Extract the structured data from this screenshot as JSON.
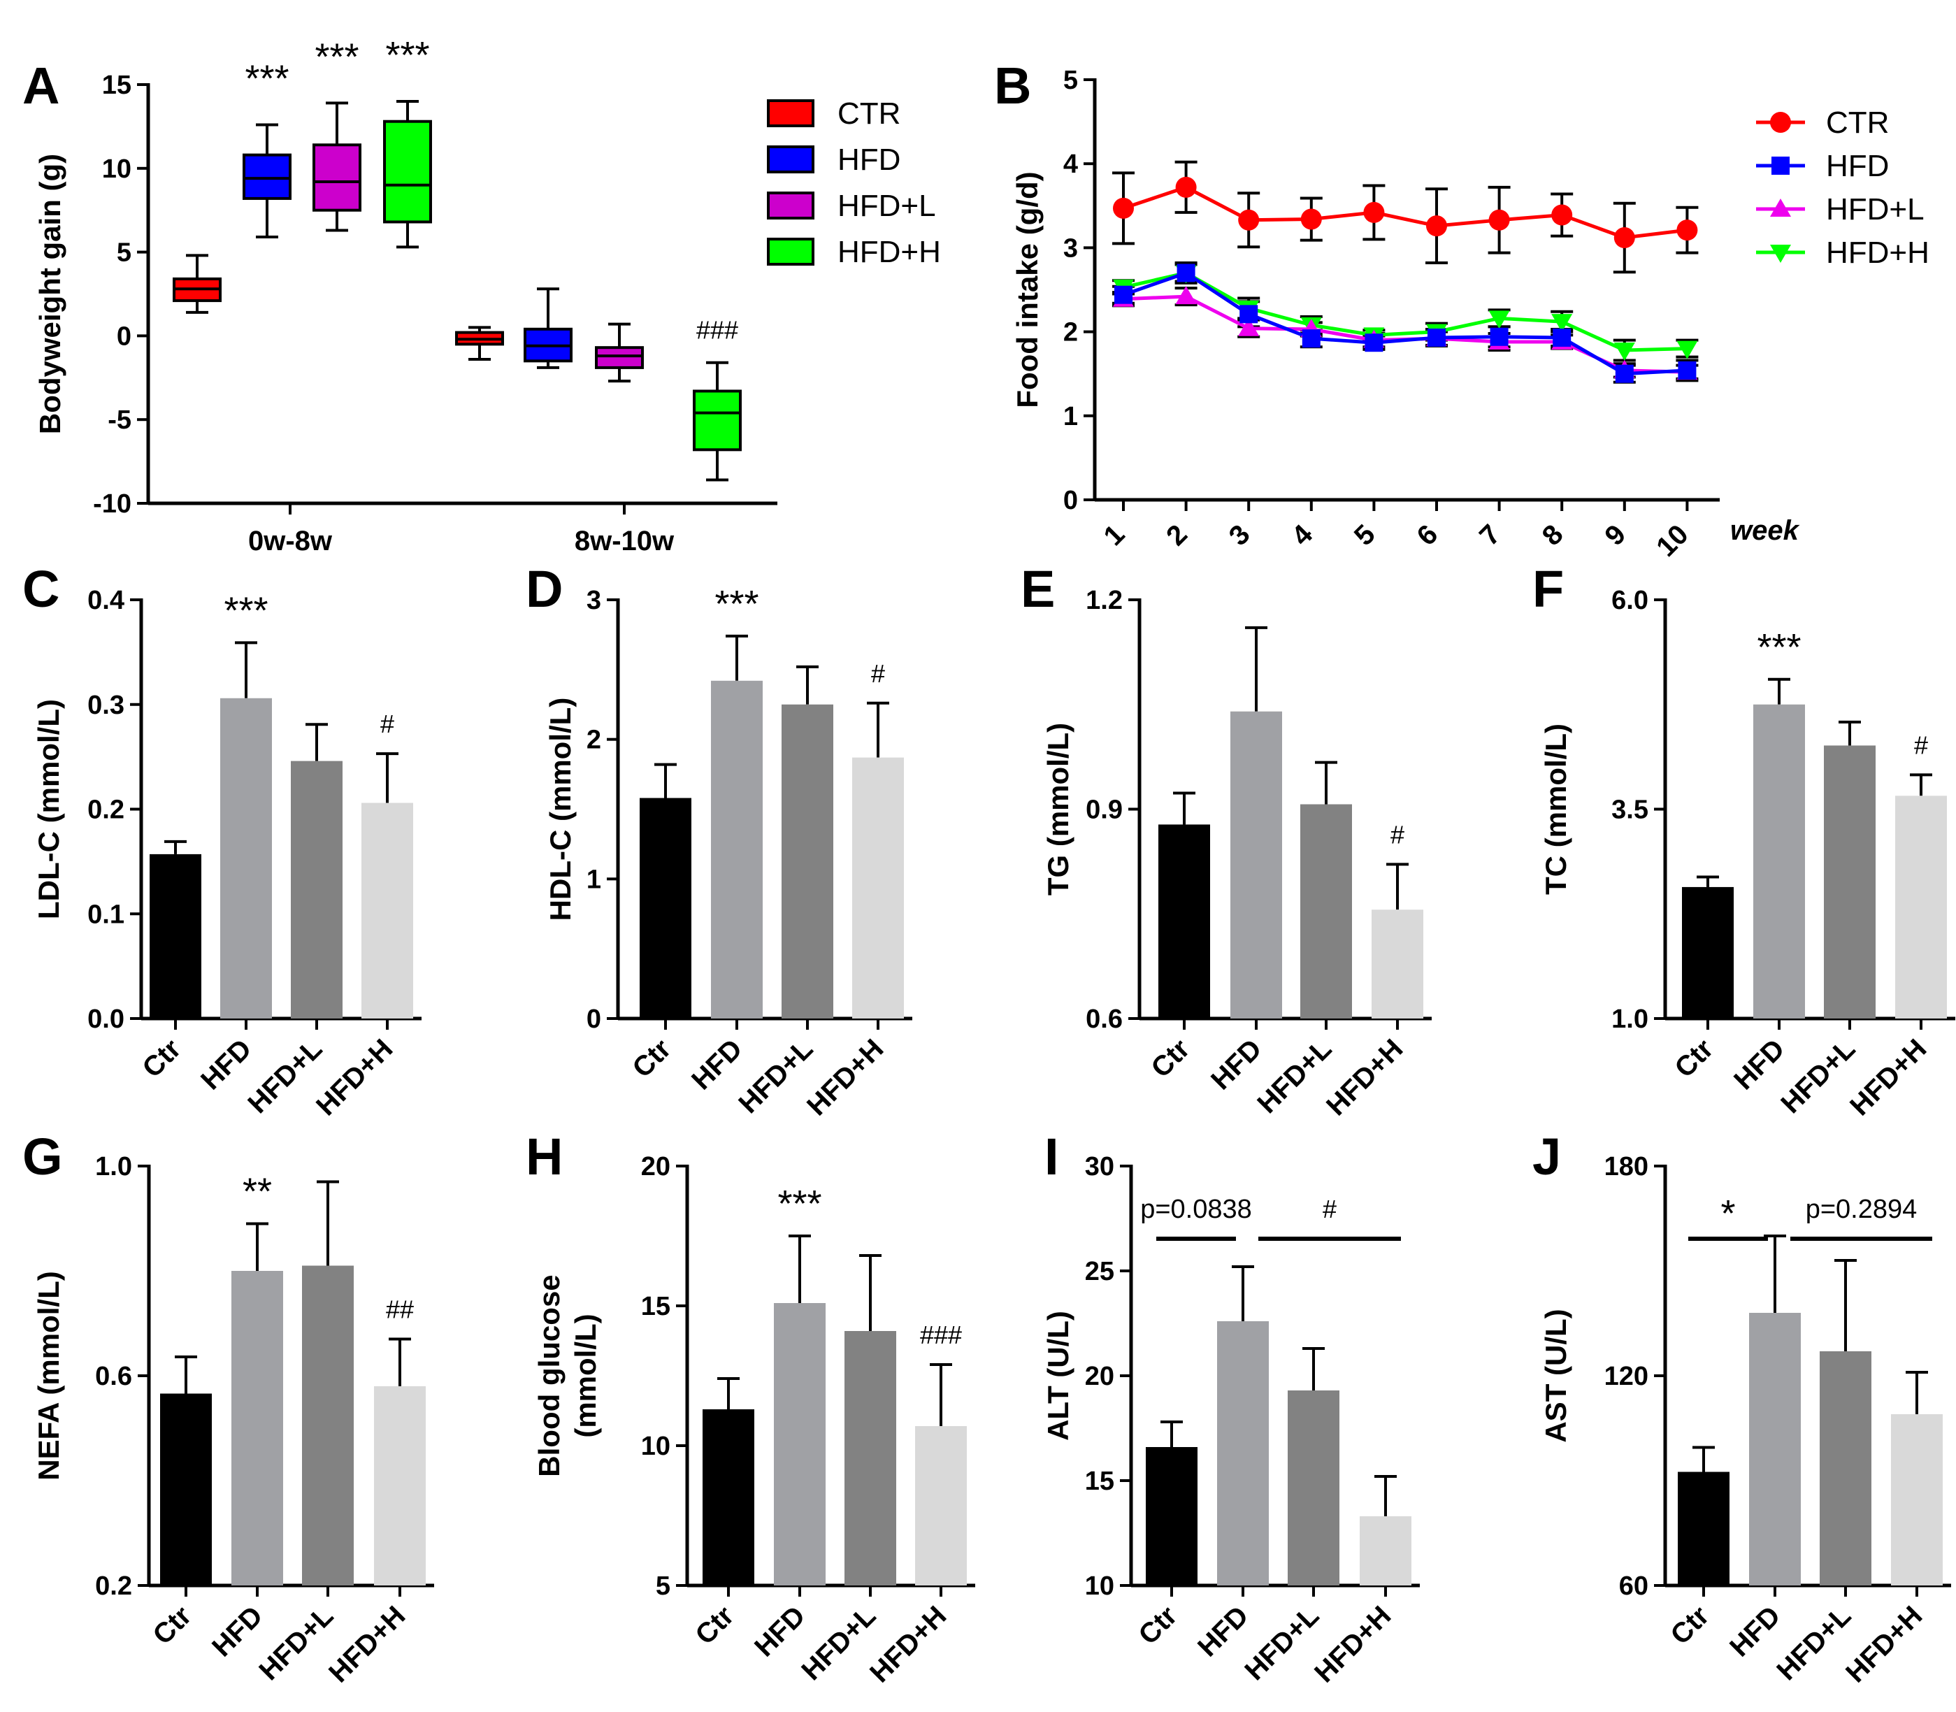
{
  "chart_data": [
    {
      "panel": "A",
      "type": "box",
      "ylabel": "Bodyweight gain (g)",
      "ylim": [
        -10,
        15
      ],
      "yticks": [
        15,
        10,
        5,
        0,
        -5,
        -10
      ],
      "groups": [
        "0w-8w",
        "8w-10w"
      ],
      "legend": [
        {
          "label": "CTR",
          "color": "#ff0000"
        },
        {
          "label": "HFD",
          "color": "#0000ff"
        },
        {
          "label": "HFD+L",
          "color": "#cc00cc"
        },
        {
          "label": "HFD+H",
          "color": "#00ff00"
        }
      ],
      "series_colors": [
        "#ff0000",
        "#0000ff",
        "#cc00cc",
        "#00ff00"
      ],
      "boxes": [
        [
          {
            "min": 1.4,
            "q1": 2.1,
            "median": 2.8,
            "q3": 3.4,
            "max": 4.8,
            "sig": ""
          },
          {
            "min": 5.9,
            "q1": 8.2,
            "median": 9.4,
            "q3": 10.8,
            "max": 12.6,
            "sig": "***"
          },
          {
            "min": 6.3,
            "q1": 7.5,
            "median": 9.2,
            "q3": 11.4,
            "max": 13.9,
            "sig": "***"
          },
          {
            "min": 5.3,
            "q1": 6.8,
            "median": 9.0,
            "q3": 12.8,
            "max": 14.0,
            "sig": "***"
          }
        ],
        [
          {
            "min": -1.4,
            "q1": -0.5,
            "median": -0.2,
            "q3": 0.2,
            "max": 0.5,
            "sig": ""
          },
          {
            "min": -1.9,
            "q1": -1.5,
            "median": -0.6,
            "q3": 0.4,
            "max": 2.8,
            "sig": ""
          },
          {
            "min": -2.7,
            "q1": -1.9,
            "median": -1.2,
            "q3": -0.7,
            "max": 0.7,
            "sig": ""
          },
          {
            "min": -8.6,
            "q1": -6.8,
            "median": -4.6,
            "q3": -3.3,
            "max": -1.6,
            "sig": "###"
          }
        ]
      ]
    },
    {
      "panel": "B",
      "type": "line",
      "ylabel": "Food intake (g/d)",
      "xlabel": "week",
      "ylim": [
        0,
        5
      ],
      "yticks": [
        5,
        4,
        3,
        2,
        1,
        0
      ],
      "x": [
        "1",
        "2",
        "3",
        "4",
        "5",
        "6",
        "7",
        "8",
        "9",
        "10"
      ],
      "series": [
        {
          "name": "CTR",
          "color": "#ff0000",
          "marker": "circle",
          "values": [
            3.47,
            3.72,
            3.33,
            3.34,
            3.42,
            3.26,
            3.33,
            3.39,
            3.12,
            3.21
          ],
          "errors": [
            0.42,
            0.3,
            0.32,
            0.25,
            0.32,
            0.44,
            0.39,
            0.25,
            0.41,
            0.27
          ]
        },
        {
          "name": "HFD",
          "color": "#0000ff",
          "marker": "square",
          "values": [
            2.44,
            2.7,
            2.21,
            1.92,
            1.87,
            1.93,
            1.94,
            1.93,
            1.5,
            1.54
          ],
          "errors": [
            0.1,
            0.12,
            0.15,
            0.1,
            0.08,
            0.1,
            0.12,
            0.1,
            0.1,
            0.12
          ]
        },
        {
          "name": "HFD+L",
          "color": "#ee00ee",
          "marker": "triangle-up",
          "values": [
            2.39,
            2.42,
            2.04,
            2.03,
            1.9,
            1.92,
            1.88,
            1.88,
            1.54,
            1.52
          ],
          "errors": [
            0.08,
            0.1,
            0.1,
            0.08,
            0.08,
            0.08,
            0.1,
            0.08,
            0.08,
            0.08
          ]
        },
        {
          "name": "HFD+H",
          "color": "#00ff00",
          "marker": "triangle-down",
          "values": [
            2.53,
            2.7,
            2.28,
            2.08,
            1.96,
            2.0,
            2.16,
            2.12,
            1.78,
            1.8
          ],
          "errors": [
            0.08,
            0.1,
            0.12,
            0.1,
            0.06,
            0.1,
            0.1,
            0.12,
            0.12,
            0.1
          ]
        }
      ]
    },
    {
      "panel": "C",
      "type": "bar",
      "ylabel": "LDL-C (mmol/L)",
      "ylim": [
        0,
        0.4
      ],
      "yticks": [
        "0.4",
        "0.3",
        "0.2",
        "0.1",
        "0.0"
      ],
      "categories": [
        "Ctr",
        "HFD",
        "HFD+L",
        "HFD+H"
      ],
      "values": [
        0.157,
        0.306,
        0.246,
        0.206
      ],
      "errors": [
        0.012,
        0.053,
        0.035,
        0.047
      ],
      "sig": [
        "",
        "***",
        "",
        "#"
      ]
    },
    {
      "panel": "D",
      "type": "bar",
      "ylabel": "HDL-C (mmol/L)",
      "ylim": [
        0,
        3
      ],
      "yticks": [
        "3",
        "2",
        "1",
        "0"
      ],
      "categories": [
        "Ctr",
        "HFD",
        "HFD+L",
        "HFD+H"
      ],
      "values": [
        1.58,
        2.42,
        2.25,
        1.87
      ],
      "errors": [
        0.24,
        0.32,
        0.27,
        0.39
      ],
      "sig": [
        "",
        "***",
        "",
        "#"
      ]
    },
    {
      "panel": "E",
      "type": "bar",
      "ylabel": "TG (mmol/L)",
      "ylim": [
        0.6,
        1.2
      ],
      "yticks": [
        "1.2",
        "0.9",
        "0.6"
      ],
      "categories": [
        "Ctr",
        "HFD",
        "HFD+L",
        "HFD+H"
      ],
      "values": [
        0.878,
        1.04,
        0.907,
        0.756
      ],
      "errors": [
        0.045,
        0.12,
        0.06,
        0.065
      ],
      "sig": [
        "",
        "",
        "",
        "#"
      ]
    },
    {
      "panel": "F",
      "type": "bar",
      "ylabel": "TC (mmol/L)",
      "ylim": [
        1.0,
        6.0
      ],
      "yticks": [
        "6.0",
        "3.5",
        "1.0"
      ],
      "categories": [
        "Ctr",
        "HFD",
        "HFD+L",
        "HFD+H"
      ],
      "values": [
        2.57,
        4.75,
        4.26,
        3.66
      ],
      "errors": [
        0.12,
        0.3,
        0.28,
        0.25
      ],
      "sig": [
        "",
        "***",
        "",
        "#"
      ]
    },
    {
      "panel": "G",
      "type": "bar",
      "ylabel": "NEFA (mmol/L)",
      "ylim": [
        0.2,
        1.0
      ],
      "yticks": [
        "1.0",
        "0.6",
        "0.2"
      ],
      "categories": [
        "Ctr",
        "HFD",
        "HFD+L",
        "HFD+H"
      ],
      "values": [
        0.566,
        0.8,
        0.81,
        0.58
      ],
      "errors": [
        0.07,
        0.09,
        0.16,
        0.09
      ],
      "sig": [
        "",
        "**",
        "",
        "##"
      ]
    },
    {
      "panel": "H",
      "type": "bar",
      "ylabel": "Blood glucose (mmol/L)",
      "ylim": [
        5,
        20
      ],
      "yticks": [
        "20",
        "15",
        "10",
        "5"
      ],
      "categories": [
        "Ctr",
        "HFD",
        "HFD+L",
        "HFD+H"
      ],
      "values": [
        11.3,
        15.1,
        14.1,
        10.7
      ],
      "errors": [
        1.1,
        2.4,
        2.7,
        2.2
      ],
      "sig": [
        "",
        "***",
        "",
        "###"
      ]
    },
    {
      "panel": "I",
      "type": "bar",
      "ylabel": "ALT (U/L)",
      "ylim": [
        10,
        30
      ],
      "yticks": [
        "30",
        "25",
        "20",
        "15",
        "10"
      ],
      "categories": [
        "Ctr",
        "HFD",
        "HFD+L",
        "HFD+H"
      ],
      "values": [
        16.6,
        22.6,
        19.3,
        13.3
      ],
      "errors": [
        1.2,
        2.6,
        2.0,
        1.9
      ],
      "sig": [
        "",
        "",
        "",
        ""
      ],
      "comparisons": [
        {
          "from": 0,
          "to": 1,
          "label": "p=0.0838"
        },
        {
          "from": 1,
          "to": 3,
          "label": "#"
        }
      ]
    },
    {
      "panel": "J",
      "type": "bar",
      "ylabel": "AST (U/L)",
      "ylim": [
        60,
        180
      ],
      "yticks": [
        "180",
        "120",
        "60"
      ],
      "categories": [
        "Ctr",
        "HFD",
        "HFD+L",
        "HFD+H"
      ],
      "values": [
        92.5,
        138,
        127,
        109
      ],
      "errors": [
        7,
        22,
        26,
        12
      ],
      "sig": [
        "",
        "",
        "",
        ""
      ],
      "comparisons": [
        {
          "from": 0,
          "to": 1,
          "label": "*"
        },
        {
          "from": 1,
          "to": 3,
          "label": "p=0.2894"
        }
      ]
    }
  ],
  "bar_colors": [
    "#000000",
    "#a0a1a5",
    "#828282",
    "#d9d9d9"
  ]
}
